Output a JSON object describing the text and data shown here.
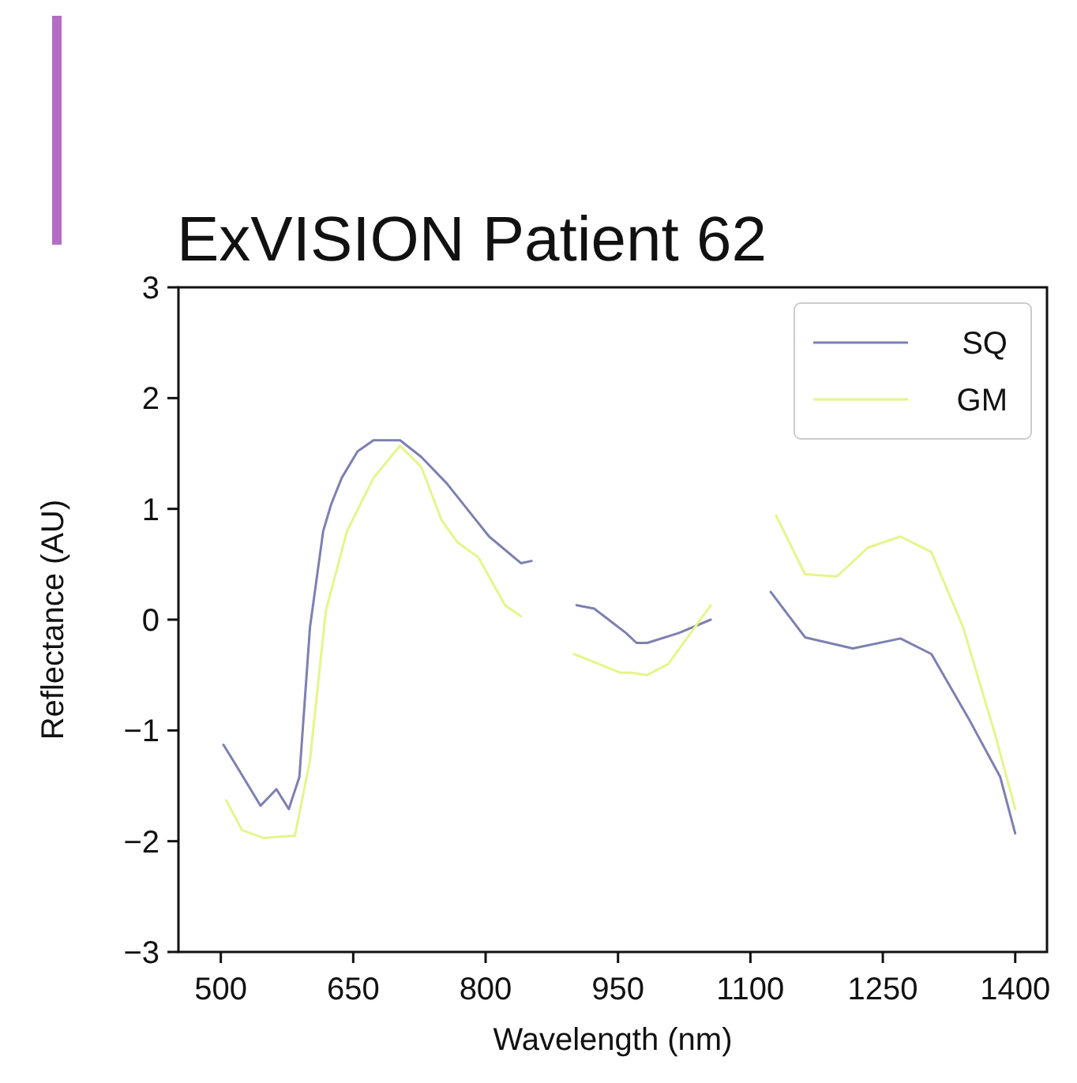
{
  "chart_data": {
    "type": "line",
    "title": "ExVISION Patient 62",
    "xlabel": "Wavelength (nm)",
    "ylabel": "Reflectance (AU)",
    "xlim": [
      452,
      1436
    ],
    "ylim": [
      -3,
      3
    ],
    "xticks": [
      500,
      650,
      800,
      950,
      1100,
      1250,
      1400
    ],
    "yticks": [
      {
        "value": 3,
        "label": "3"
      },
      {
        "value": 2,
        "label": "2"
      },
      {
        "value": 1,
        "label": "1"
      },
      {
        "value": 0,
        "label": "0"
      },
      {
        "value": -1,
        "label": "−1"
      },
      {
        "value": -2,
        "label": "−2"
      },
      {
        "value": -3,
        "label": "−3"
      }
    ],
    "grid": false,
    "legend": "top right",
    "line_style": "solid",
    "marker": "none",
    "series": [
      {
        "name": "SQ",
        "color": "#7c80b2",
        "x": [
          503,
          520,
          545,
          563,
          577,
          589,
          601,
          616,
          625,
          637,
          655,
          673,
          703,
          727,
          756,
          780,
          804,
          840,
          852,
          null,
          903,
          923,
          959,
          971,
          983,
          1019,
          1055,
          null,
          1123,
          1162,
          1216,
          1270,
          1305,
          1347,
          1383,
          1400
        ],
        "values": [
          -1.13,
          -1.35,
          -1.68,
          -1.53,
          -1.71,
          -1.42,
          -0.07,
          0.8,
          1.04,
          1.28,
          1.52,
          1.62,
          1.62,
          1.47,
          1.23,
          0.99,
          0.75,
          0.51,
          0.53,
          null,
          0.13,
          0.1,
          -0.12,
          -0.21,
          -0.21,
          -0.12,
          0.0,
          null,
          0.25,
          -0.16,
          -0.26,
          -0.17,
          -0.31,
          -0.89,
          -1.42,
          -1.93
        ]
      },
      {
        "name": "GM",
        "color": "#e6f58a",
        "x": [
          506,
          524,
          548,
          584,
          601,
          619,
          643,
          673,
          703,
          727,
          750,
          768,
          792,
          822,
          840,
          null,
          900,
          953,
          965,
          983,
          1007,
          1055,
          null,
          1129,
          1162,
          1198,
          1233,
          1270,
          1305,
          1341,
          1377,
          1400
        ],
        "values": [
          -1.63,
          -1.9,
          -1.97,
          -1.95,
          -1.27,
          0.08,
          0.8,
          1.28,
          1.57,
          1.38,
          0.9,
          0.7,
          0.56,
          0.13,
          0.03,
          null,
          -0.31,
          -0.48,
          -0.48,
          -0.5,
          -0.4,
          0.13,
          null,
          0.94,
          0.41,
          0.39,
          0.65,
          0.75,
          0.61,
          -0.07,
          -1.03,
          -1.71
        ]
      }
    ]
  }
}
